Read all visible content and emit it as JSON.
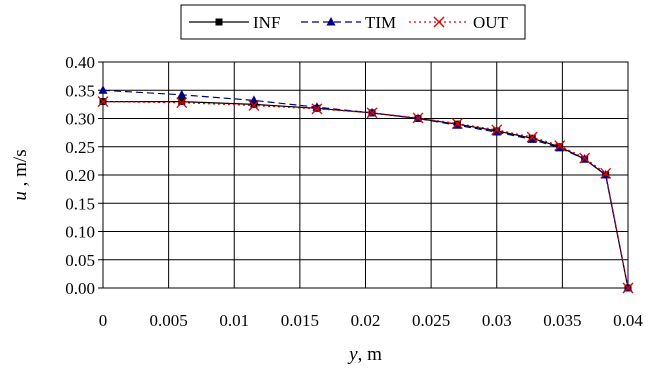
{
  "chart_data": {
    "type": "line",
    "title": "",
    "xlabel": {
      "symbol": "y",
      "unit": ", m"
    },
    "ylabel": {
      "symbol": "u",
      "unit": " , m/s"
    },
    "xlim": [
      0,
      0.04
    ],
    "ylim": [
      0,
      0.4
    ],
    "x_ticks": [
      "0",
      "0.005",
      "0.01",
      "0.015",
      "0.02",
      "0.025",
      "0.03",
      "0.035",
      "0.04"
    ],
    "y_ticks": [
      "0.00",
      "0.05",
      "0.10",
      "0.15",
      "0.20",
      "0.25",
      "0.30",
      "0.35",
      "0.40"
    ],
    "grid": true,
    "legend_position": "top",
    "series": [
      {
        "name": "INF",
        "color": "#000000",
        "line_style": "solid",
        "marker": "square",
        "points": [
          [
            0,
            0.33
          ],
          [
            0.006,
            0.33
          ],
          [
            0.0115,
            0.325
          ],
          [
            0.0163,
            0.318
          ],
          [
            0.0205,
            0.31
          ],
          [
            0.024,
            0.3
          ],
          [
            0.027,
            0.29
          ],
          [
            0.03,
            0.278
          ],
          [
            0.0327,
            0.265
          ],
          [
            0.0348,
            0.25
          ],
          [
            0.0367,
            0.228
          ],
          [
            0.0383,
            0.2
          ],
          [
            0.04,
            0.0
          ]
        ]
      },
      {
        "name": "TIM",
        "color": "#000080",
        "line_style": "dashed",
        "marker": "triangle",
        "points": [
          [
            0,
            0.35
          ],
          [
            0.006,
            0.342
          ],
          [
            0.0115,
            0.332
          ],
          [
            0.0163,
            0.32
          ],
          [
            0.0205,
            0.31
          ],
          [
            0.024,
            0.3
          ],
          [
            0.027,
            0.288
          ],
          [
            0.03,
            0.276
          ],
          [
            0.0327,
            0.263
          ],
          [
            0.0348,
            0.248
          ],
          [
            0.0367,
            0.228
          ],
          [
            0.0383,
            0.2
          ],
          [
            0.04,
            0.0
          ]
        ]
      },
      {
        "name": "OUT",
        "color": "#e00000",
        "line_style": "dotted",
        "marker": "x",
        "points": [
          [
            0,
            0.33
          ],
          [
            0.006,
            0.328
          ],
          [
            0.0115,
            0.323
          ],
          [
            0.0163,
            0.317
          ],
          [
            0.0205,
            0.31
          ],
          [
            0.024,
            0.301
          ],
          [
            0.027,
            0.291
          ],
          [
            0.03,
            0.28
          ],
          [
            0.0327,
            0.267
          ],
          [
            0.0348,
            0.252
          ],
          [
            0.0367,
            0.23
          ],
          [
            0.0383,
            0.203
          ],
          [
            0.04,
            0.0
          ]
        ]
      }
    ]
  }
}
